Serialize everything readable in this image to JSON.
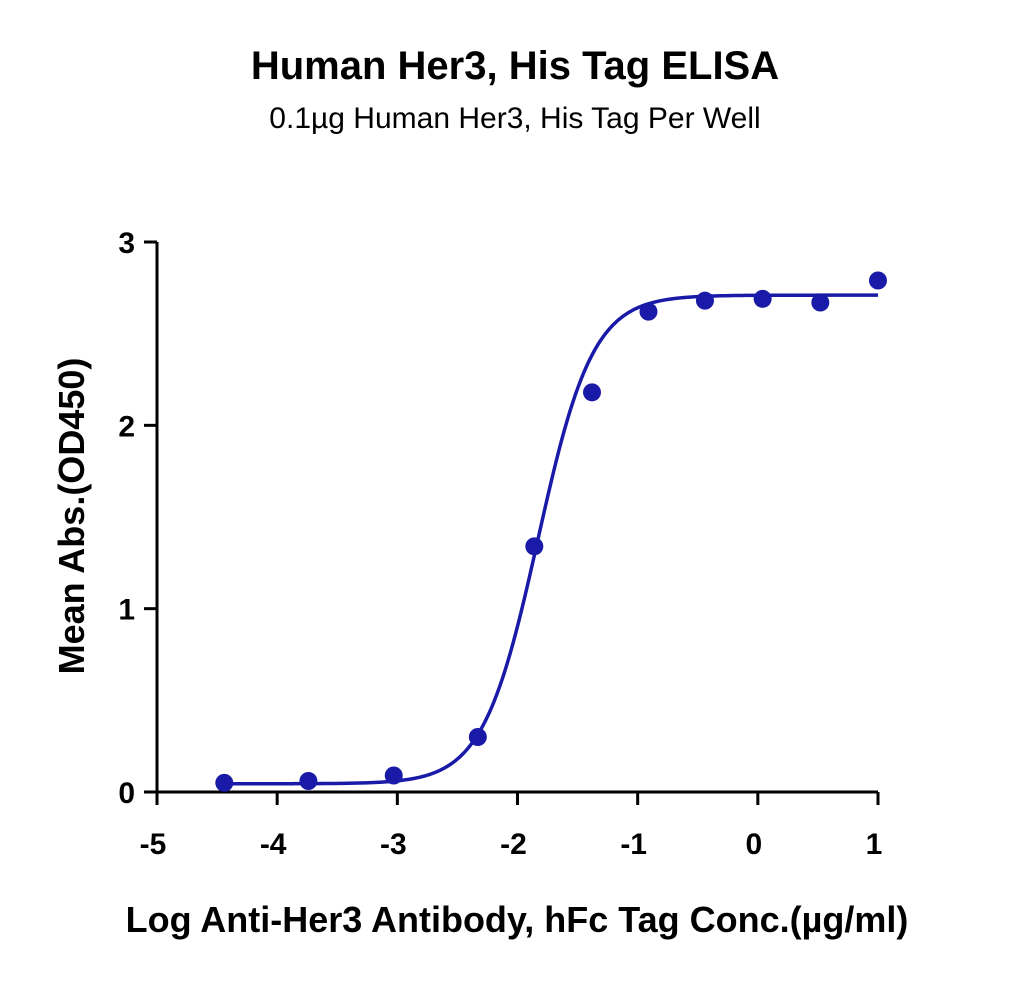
{
  "chart_data": {
    "type": "scatter",
    "title": "Human Her3, His Tag ELISA",
    "subtitle": "0.1µg Human Her3, His Tag Per Well",
    "xlabel": "Log Anti-Her3 Antibody, hFc Tag Conc.(µg/ml)",
    "ylabel": "Mean Abs.(OD450)",
    "xlim": [
      -5,
      1
    ],
    "ylim": [
      0,
      3
    ],
    "xticks": [
      "-5",
      "-4",
      "-3",
      "-2",
      "-1",
      "0",
      "1"
    ],
    "yticks": [
      "0",
      "1",
      "2",
      "3"
    ],
    "grid": false,
    "legend": "none",
    "colors": {
      "series": "#1a1aa8",
      "axis": "#000000"
    },
    "series": [
      {
        "points": {
          "x": [
            -4.44,
            -3.74,
            -3.03,
            -2.33,
            -1.86,
            -1.38,
            -0.91,
            -0.44,
            0.04,
            0.52,
            1.0
          ],
          "y": [
            0.05,
            0.06,
            0.09,
            0.3,
            1.34,
            2.18,
            2.62,
            2.68,
            2.69,
            2.67,
            2.79
          ]
        },
        "fit": {
          "model": "4PL",
          "bottom": 0.045,
          "top": 2.71,
          "logEC50": -1.83,
          "hillslope": 1.9
        }
      }
    ]
  }
}
